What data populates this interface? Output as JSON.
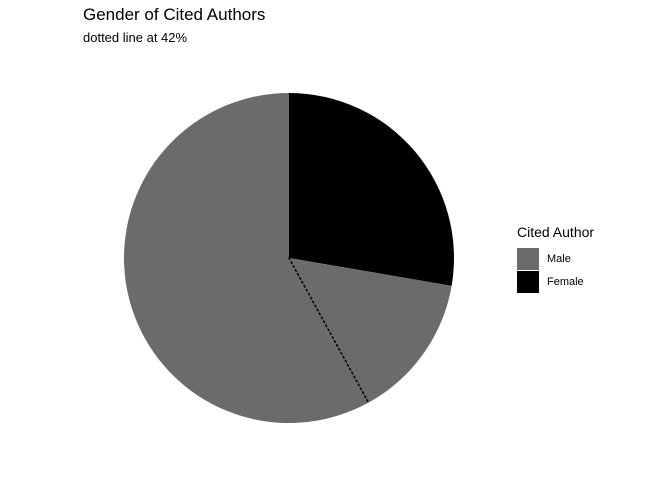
{
  "chart_data": {
    "type": "pie",
    "title": "Gender of Cited Authors",
    "subtitle": "dotted line at 42%",
    "legend_title": "Cited Author",
    "legend_position": "right",
    "slices": [
      {
        "label": "Male",
        "value": 72.3,
        "color": "#6b6b6b"
      },
      {
        "label": "Female",
        "value": 27.7,
        "color": "#000000"
      }
    ],
    "start_angle_deg": 0,
    "direction": "clockwise",
    "reference_line": {
      "value": 42,
      "style": "dotted"
    }
  }
}
